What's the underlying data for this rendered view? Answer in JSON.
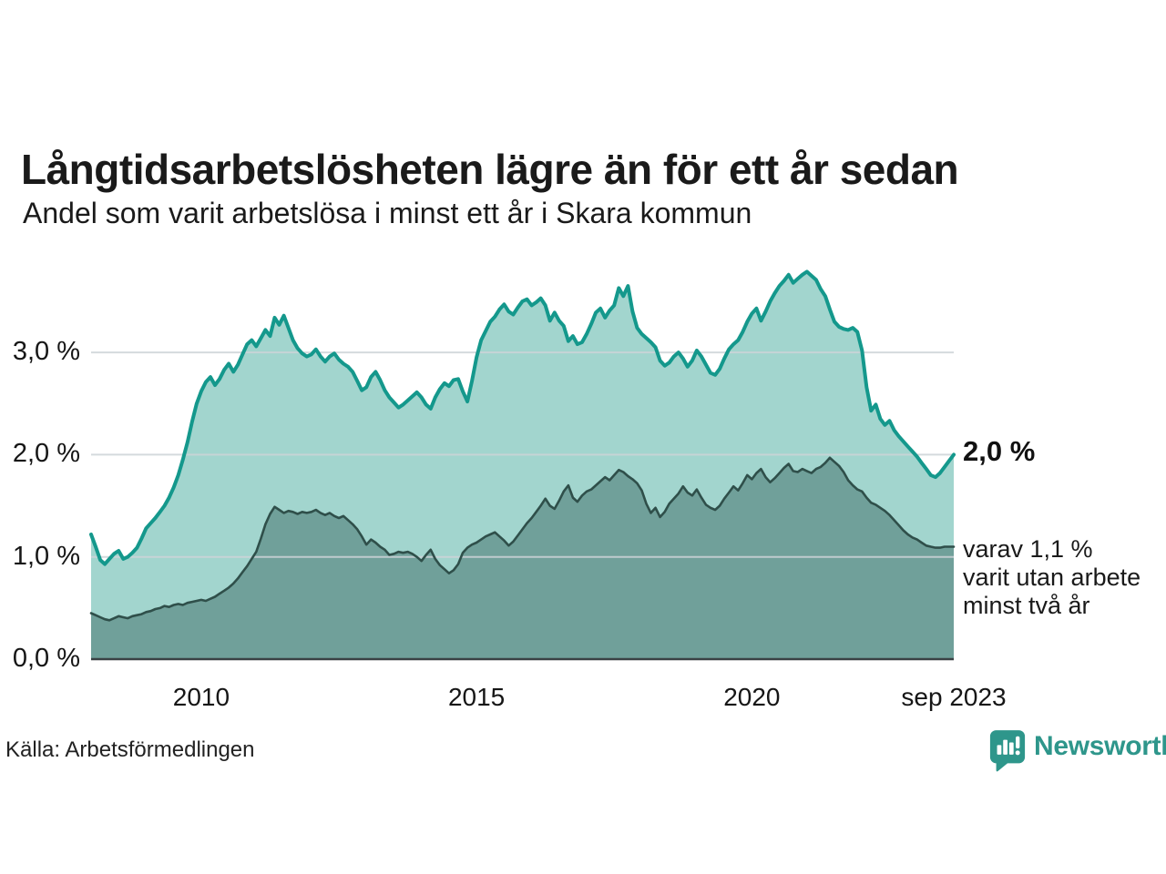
{
  "header": {
    "title": "Långtidsarbetslösheten lägre än för ett år sedan",
    "subtitle": "Andel som varit arbetslösa i minst ett år i Skara kommun"
  },
  "annotations": {
    "end_total": "2,0 %",
    "end_two_line1": "varav 1,1 %",
    "end_two_line2": "varit utan arbete",
    "end_two_line3": "minst två år"
  },
  "footer": {
    "source": "Källa: Arbetsförmedlingen",
    "brand": "Newsworthy"
  },
  "colors": {
    "line_total": "#14988c",
    "fill_total": "#a2d5ce",
    "line_two_years": "#2f4f4a",
    "fill_two_years": "#70a09a",
    "brand_teal": "#2e968b"
  },
  "chart_data": {
    "type": "area",
    "title": "Långtidsarbetslösheten lägre än för ett år sedan",
    "subtitle": "Andel som varit arbetslösa i minst ett år i Skara kommun",
    "unit": "%",
    "grid": "horizontal",
    "x_start": 2008.0,
    "x_end": 2023.667,
    "ylim": [
      0,
      3.95
    ],
    "x_ticks": [
      {
        "label": "2010",
        "x": 2010
      },
      {
        "label": "2015",
        "x": 2015
      },
      {
        "label": "2020",
        "x": 2020
      },
      {
        "label": "sep 2023",
        "x": 2023.667
      }
    ],
    "y_ticks": [
      {
        "label": "0,0 %",
        "v": 0
      },
      {
        "label": "1,0 %",
        "v": 1
      },
      {
        "label": "2,0 %",
        "v": 2
      },
      {
        "label": "3,0 %",
        "v": 3
      }
    ],
    "end_values": {
      "total": 2.0,
      "two_years": 1.1
    },
    "series": [
      {
        "name": "Andel arbetslösa minst ett år",
        "values": [
          1.22,
          1.1,
          0.97,
          0.93,
          0.98,
          1.03,
          1.06,
          0.98,
          1.0,
          1.04,
          1.09,
          1.18,
          1.28,
          1.33,
          1.38,
          1.44,
          1.5,
          1.58,
          1.68,
          1.8,
          1.95,
          2.12,
          2.32,
          2.5,
          2.62,
          2.71,
          2.76,
          2.68,
          2.74,
          2.83,
          2.89,
          2.81,
          2.88,
          2.98,
          3.08,
          3.12,
          3.06,
          3.14,
          3.22,
          3.16,
          3.34,
          3.27,
          3.36,
          3.24,
          3.12,
          3.04,
          2.99,
          2.96,
          2.98,
          3.03,
          2.96,
          2.91,
          2.96,
          2.99,
          2.93,
          2.89,
          2.86,
          2.81,
          2.72,
          2.63,
          2.66,
          2.76,
          2.81,
          2.73,
          2.63,
          2.56,
          2.51,
          2.46,
          2.49,
          2.53,
          2.57,
          2.61,
          2.56,
          2.49,
          2.45,
          2.56,
          2.64,
          2.7,
          2.67,
          2.73,
          2.74,
          2.62,
          2.52,
          2.72,
          2.95,
          3.12,
          3.21,
          3.3,
          3.35,
          3.42,
          3.47,
          3.4,
          3.37,
          3.44,
          3.5,
          3.52,
          3.46,
          3.49,
          3.53,
          3.46,
          3.31,
          3.39,
          3.31,
          3.26,
          3.11,
          3.16,
          3.08,
          3.1,
          3.18,
          3.28,
          3.39,
          3.43,
          3.34,
          3.41,
          3.46,
          3.63,
          3.55,
          3.65,
          3.4,
          3.24,
          3.18,
          3.14,
          3.1,
          3.05,
          2.92,
          2.87,
          2.9,
          2.96,
          3.0,
          2.94,
          2.86,
          2.92,
          3.02,
          2.96,
          2.88,
          2.8,
          2.78,
          2.84,
          2.94,
          3.03,
          3.08,
          3.12,
          3.2,
          3.3,
          3.38,
          3.43,
          3.31,
          3.4,
          3.5,
          3.58,
          3.65,
          3.7,
          3.76,
          3.68,
          3.72,
          3.76,
          3.79,
          3.75,
          3.71,
          3.62,
          3.55,
          3.42,
          3.3,
          3.25,
          3.23,
          3.22,
          3.24,
          3.2,
          3.02,
          2.66,
          2.43,
          2.49,
          2.35,
          2.29,
          2.33,
          2.24,
          2.18,
          2.13,
          2.08,
          2.03,
          1.98,
          1.92,
          1.86,
          1.8,
          1.78,
          1.82,
          1.88,
          1.94,
          2.0
        ]
      },
      {
        "name": "varav arbetslösa minst två år",
        "values": [
          0.45,
          0.43,
          0.41,
          0.39,
          0.38,
          0.4,
          0.42,
          0.41,
          0.4,
          0.42,
          0.43,
          0.44,
          0.46,
          0.47,
          0.49,
          0.5,
          0.52,
          0.51,
          0.53,
          0.54,
          0.53,
          0.55,
          0.56,
          0.57,
          0.58,
          0.57,
          0.59,
          0.61,
          0.64,
          0.67,
          0.7,
          0.74,
          0.79,
          0.85,
          0.91,
          0.98,
          1.05,
          1.18,
          1.32,
          1.42,
          1.49,
          1.46,
          1.43,
          1.45,
          1.44,
          1.42,
          1.44,
          1.43,
          1.44,
          1.46,
          1.43,
          1.41,
          1.43,
          1.4,
          1.38,
          1.4,
          1.36,
          1.32,
          1.27,
          1.2,
          1.12,
          1.17,
          1.14,
          1.1,
          1.07,
          1.02,
          1.03,
          1.05,
          1.04,
          1.05,
          1.03,
          1.0,
          0.96,
          1.02,
          1.07,
          0.98,
          0.92,
          0.88,
          0.84,
          0.87,
          0.93,
          1.04,
          1.09,
          1.12,
          1.14,
          1.17,
          1.2,
          1.22,
          1.24,
          1.2,
          1.16,
          1.11,
          1.15,
          1.21,
          1.27,
          1.33,
          1.38,
          1.44,
          1.5,
          1.57,
          1.5,
          1.47,
          1.55,
          1.64,
          1.7,
          1.58,
          1.54,
          1.6,
          1.64,
          1.66,
          1.7,
          1.74,
          1.78,
          1.75,
          1.8,
          1.85,
          1.83,
          1.79,
          1.76,
          1.72,
          1.65,
          1.52,
          1.43,
          1.48,
          1.39,
          1.44,
          1.52,
          1.57,
          1.62,
          1.69,
          1.63,
          1.6,
          1.66,
          1.58,
          1.51,
          1.48,
          1.46,
          1.5,
          1.57,
          1.63,
          1.69,
          1.65,
          1.72,
          1.8,
          1.76,
          1.82,
          1.86,
          1.78,
          1.73,
          1.77,
          1.82,
          1.87,
          1.91,
          1.84,
          1.83,
          1.86,
          1.84,
          1.82,
          1.86,
          1.88,
          1.92,
          1.97,
          1.93,
          1.89,
          1.83,
          1.75,
          1.7,
          1.66,
          1.64,
          1.58,
          1.53,
          1.51,
          1.48,
          1.45,
          1.41,
          1.36,
          1.31,
          1.26,
          1.22,
          1.19,
          1.17,
          1.14,
          1.11,
          1.1,
          1.09,
          1.09,
          1.1,
          1.1,
          1.1
        ]
      }
    ]
  }
}
